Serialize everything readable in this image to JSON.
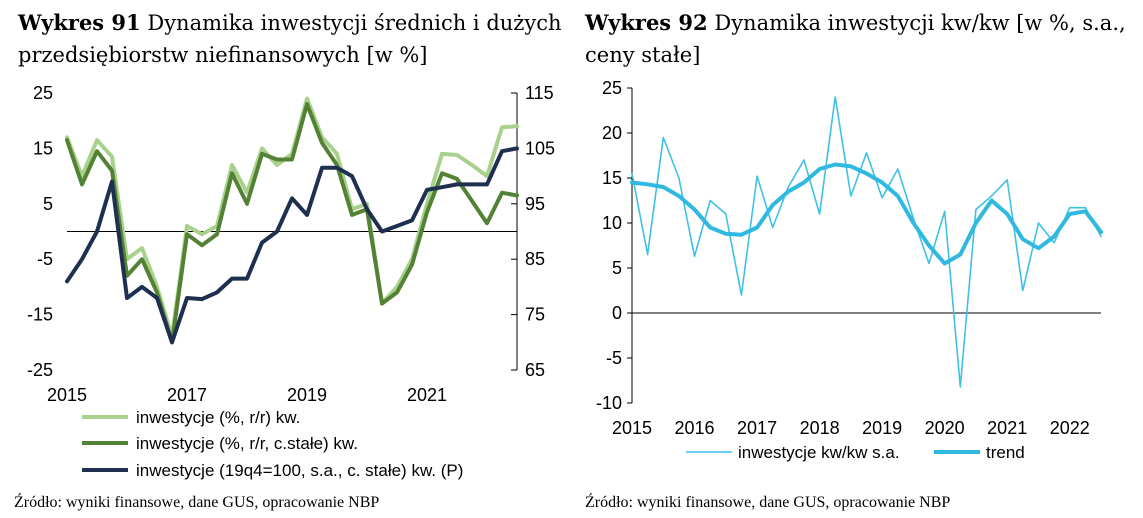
{
  "left": {
    "title_bold": "Wykres 91",
    "title_rest": "Dynamika inwestycji średnich i dużych",
    "title_line2": "przedsiębiorstw niefinansowych [w %]",
    "source": "Źródło: wyniki finansowe, dane GUS, opracowanie NBP"
  },
  "right": {
    "title_bold": "Wykres 92",
    "title_rest": "Dynamika inwestycji kw/kw [w %, s.a.,",
    "title_line2": "ceny stałe]",
    "source": "Źródło: wyniki finansowe, dane GUS, opracowanie NBP"
  },
  "chart_data": [
    {
      "type": "line",
      "ylim": [
        -25,
        25
      ],
      "yticks": [
        "25",
        "15",
        "5",
        "-5",
        "-15",
        "-25"
      ],
      "y2lim": [
        65,
        115
      ],
      "y2ticks": [
        "115",
        "105",
        "95",
        "85",
        "75",
        "65"
      ],
      "xticks": [
        "2015",
        "2017",
        "2019",
        "2021"
      ],
      "x_start": 2015.0,
      "x_step": 0.25,
      "series": [
        {
          "name": "inwestycje (%, r/r) kw.",
          "axis": "left",
          "color": "#a9d18e",
          "width": 4,
          "values": [
            17,
            10,
            16.5,
            13.5,
            -5,
            -3,
            -10,
            -19,
            1,
            -0.5,
            1,
            12,
            7,
            15,
            12,
            14,
            24,
            17,
            14,
            4,
            5,
            -13,
            -10,
            -5,
            5,
            14,
            13.8,
            12,
            10,
            18.8,
            19
          ]
        },
        {
          "name": "inwestycje (%, r/r, c.stałe) kw.",
          "axis": "left",
          "color": "#548235",
          "width": 4,
          "values": [
            16.5,
            8.5,
            14.5,
            11,
            -8,
            -5,
            -11,
            -20,
            -0.5,
            -2.5,
            -0.5,
            10.5,
            5,
            14,
            13,
            13,
            23,
            16,
            12,
            3,
            4,
            -13,
            -11,
            -6,
            3.5,
            10.5,
            9.5,
            5.5,
            1.5,
            7,
            6.5
          ]
        },
        {
          "name": "inwestycje (19q4=100, s.a., c. stałe) kw. (P)",
          "axis": "right",
          "color": "#1f2f4f",
          "width": 4,
          "values": [
            81,
            85,
            90,
            99,
            78,
            80,
            78,
            70,
            78,
            77.8,
            79,
            81.5,
            81.5,
            88,
            90,
            96,
            93,
            101.5,
            101.5,
            100,
            94,
            90,
            91,
            92,
            97.5,
            98,
            98.5,
            98.5,
            98.5,
            104.5,
            105
          ]
        }
      ]
    },
    {
      "type": "line",
      "ylim": [
        -10,
        25
      ],
      "yticks": [
        "25",
        "20",
        "15",
        "10",
        "5",
        "0",
        "-5",
        "-10"
      ],
      "xticks": [
        "2015",
        "2016",
        "2017",
        "2018",
        "2019",
        "2020",
        "2021",
        "2022"
      ],
      "x_start": 2015.0,
      "x_step": 0.25,
      "series": [
        {
          "name": "inwestycje kw/kw s.a.",
          "color": "#3fc1e4",
          "width": 1.6,
          "values": [
            15.5,
            6.5,
            19.5,
            15,
            6.3,
            12.5,
            11,
            2,
            15.2,
            9.5,
            14,
            17,
            11,
            24,
            13,
            17.8,
            12.8,
            16,
            10.5,
            5.5,
            11.3,
            -8.2,
            11.5,
            13,
            14.8,
            2.5,
            10,
            7.8,
            11.7,
            11.7,
            8.5
          ]
        },
        {
          "name": "trend",
          "color": "#2fb8e0",
          "width": 4,
          "values": [
            14.5,
            14.3,
            14,
            13,
            11.5,
            9.5,
            8.8,
            8.7,
            9.5,
            12,
            13.5,
            14.5,
            16,
            16.5,
            16.3,
            15.5,
            14.5,
            13,
            10,
            7.5,
            5.5,
            6.5,
            10,
            12.5,
            11,
            8.2,
            7.2,
            8.5,
            11,
            11.3,
            9
          ]
        }
      ]
    }
  ]
}
